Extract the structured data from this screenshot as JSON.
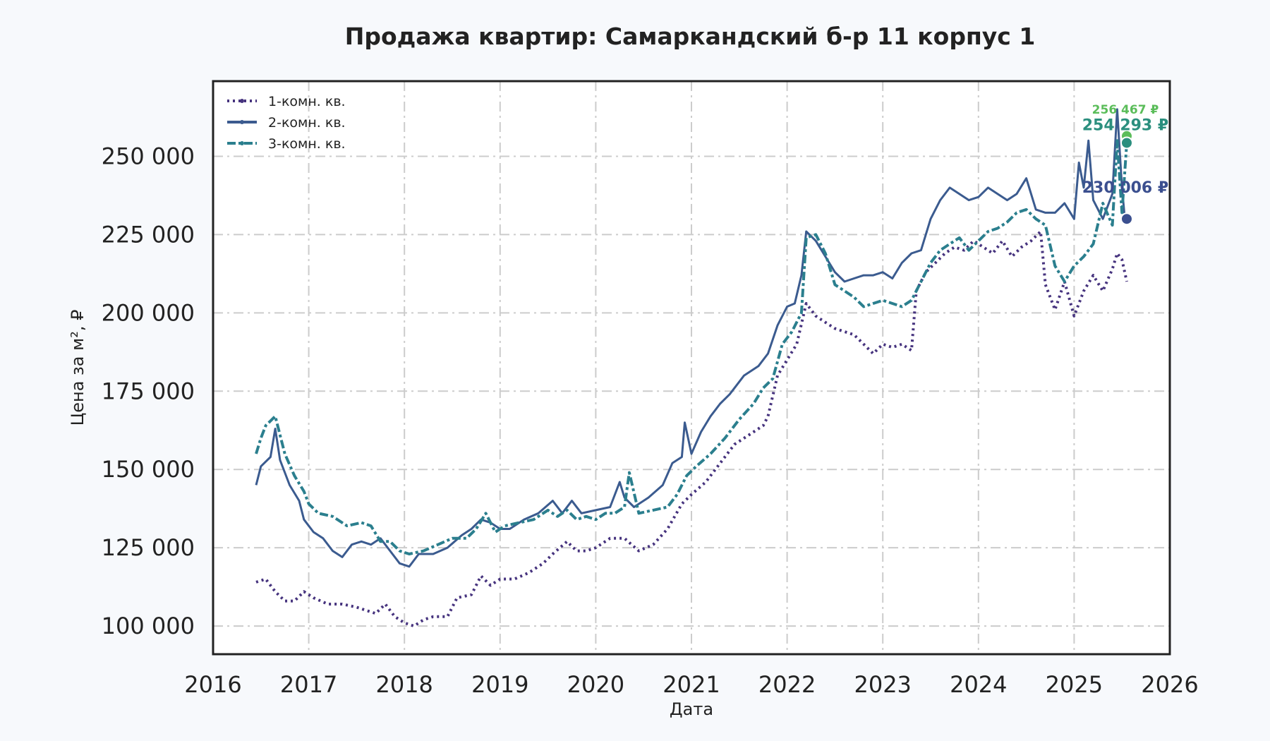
{
  "chart_data": {
    "type": "line",
    "title": "Продажа квартир: Самаркандский б-р 11 корпус 1",
    "xlabel": "Дата",
    "ylabel": "Цена за м², ₽",
    "xlim": [
      2016,
      2026
    ],
    "ylim": [
      91000,
      274000
    ],
    "x_ticks": [
      "2016",
      "2017",
      "2018",
      "2019",
      "2020",
      "2021",
      "2022",
      "2023",
      "2024",
      "2025",
      "2026"
    ],
    "y_ticks": [
      "100 000",
      "125 000",
      "150 000",
      "175 000",
      "200 000",
      "225 000",
      "250 000"
    ],
    "y_tick_values": [
      100000,
      125000,
      150000,
      175000,
      200000,
      225000,
      250000
    ],
    "grid": true,
    "legend_position": "top-left",
    "series": [
      {
        "name": "1-комн. кв.",
        "color": "#46337e",
        "style": "dotted",
        "x": [
          2016.45,
          2016.55,
          2016.65,
          2016.75,
          2016.85,
          2016.95,
          2017.05,
          2017.2,
          2017.35,
          2017.5,
          2017.6,
          2017.7,
          2017.8,
          2017.9,
          2018.0,
          2018.1,
          2018.2,
          2018.3,
          2018.45,
          2018.55,
          2018.7,
          2018.8,
          2018.9,
          2019.0,
          2019.15,
          2019.3,
          2019.45,
          2019.55,
          2019.7,
          2019.8,
          2019.9,
          2020.0,
          2020.15,
          2020.3,
          2020.45,
          2020.6,
          2020.75,
          2020.9,
          2021.0,
          2021.15,
          2021.3,
          2021.45,
          2021.6,
          2021.75,
          2021.8,
          2021.9,
          2022.0,
          2022.1,
          2022.2,
          2022.3,
          2022.4,
          2022.5,
          2022.6,
          2022.7,
          2022.8,
          2022.9,
          2023.0,
          2023.1,
          2023.2,
          2023.3,
          2023.35,
          2023.45,
          2023.55,
          2023.65,
          2023.75,
          2023.85,
          2023.95,
          2024.05,
          2024.15,
          2024.25,
          2024.35,
          2024.45,
          2024.55,
          2024.65,
          2024.7,
          2024.8,
          2024.9,
          2025.0,
          2025.1,
          2025.2,
          2025.3,
          2025.4,
          2025.45,
          2025.5,
          2025.55
        ],
        "values": [
          114000,
          115000,
          111000,
          108000,
          108000,
          111000,
          109000,
          107000,
          107000,
          106000,
          105000,
          104000,
          107000,
          103000,
          101000,
          100000,
          102000,
          103000,
          103000,
          109000,
          110000,
          116000,
          113000,
          115000,
          115000,
          117000,
          120000,
          123000,
          127000,
          124000,
          124000,
          125000,
          128000,
          128000,
          124000,
          126000,
          131000,
          139000,
          142000,
          146000,
          152000,
          158000,
          161000,
          164000,
          167000,
          180000,
          185000,
          190000,
          203000,
          199000,
          197000,
          195000,
          194000,
          193000,
          190000,
          187000,
          190000,
          189000,
          190000,
          188000,
          207000,
          213000,
          216000,
          219000,
          221000,
          220000,
          223000,
          221000,
          219000,
          223000,
          218000,
          221000,
          223000,
          226000,
          209000,
          201000,
          210000,
          199000,
          207000,
          212000,
          207000,
          214000,
          219000,
          217000,
          210000
        ]
      },
      {
        "name": "2-комн. кв.",
        "color": "#3b5b8f",
        "style": "solid",
        "x": [
          2016.45,
          2016.5,
          2016.6,
          2016.65,
          2016.7,
          2016.8,
          2016.9,
          2016.95,
          2017.05,
          2017.15,
          2017.25,
          2017.35,
          2017.45,
          2017.55,
          2017.65,
          2017.75,
          2017.85,
          2017.95,
          2018.05,
          2018.15,
          2018.3,
          2018.45,
          2018.6,
          2018.7,
          2018.8,
          2018.9,
          2019.0,
          2019.1,
          2019.25,
          2019.4,
          2019.55,
          2019.65,
          2019.75,
          2019.85,
          2020.0,
          2020.15,
          2020.25,
          2020.3,
          2020.4,
          2020.55,
          2020.7,
          2020.8,
          2020.9,
          2020.93,
          2021.0,
          2021.1,
          2021.2,
          2021.3,
          2021.4,
          2021.55,
          2021.7,
          2021.8,
          2021.9,
          2022.0,
          2022.08,
          2022.15,
          2022.2,
          2022.3,
          2022.4,
          2022.5,
          2022.6,
          2022.7,
          2022.8,
          2022.9,
          2023.0,
          2023.1,
          2023.2,
          2023.3,
          2023.4,
          2023.5,
          2023.6,
          2023.7,
          2023.8,
          2023.9,
          2024.0,
          2024.1,
          2024.2,
          2024.3,
          2024.4,
          2024.5,
          2024.6,
          2024.7,
          2024.8,
          2024.9,
          2025.0,
          2025.05,
          2025.1,
          2025.15,
          2025.2,
          2025.3,
          2025.4,
          2025.45,
          2025.5,
          2025.53
        ],
        "values": [
          145000,
          151000,
          154000,
          163000,
          153000,
          145000,
          140000,
          134000,
          130000,
          128000,
          124000,
          122000,
          126000,
          127000,
          126000,
          128000,
          124000,
          120000,
          119000,
          123000,
          123000,
          125000,
          129000,
          131000,
          134000,
          133000,
          131000,
          131000,
          134000,
          136000,
          140000,
          136000,
          140000,
          136000,
          137000,
          138000,
          146000,
          141000,
          138000,
          141000,
          145000,
          152000,
          154000,
          165000,
          155000,
          162000,
          167000,
          171000,
          174000,
          180000,
          183000,
          187000,
          196000,
          202000,
          203000,
          212000,
          226000,
          223000,
          218000,
          213000,
          210000,
          211000,
          212000,
          212000,
          213000,
          211000,
          216000,
          219000,
          220000,
          230000,
          236000,
          240000,
          238000,
          236000,
          237000,
          240000,
          238000,
          236000,
          238000,
          243000,
          233000,
          232000,
          232000,
          235000,
          230000,
          248000,
          240000,
          255000,
          236000,
          230000,
          238000,
          265000,
          240000,
          230006
        ]
      },
      {
        "name": "3-комн. кв.",
        "color": "#2b7f8e",
        "style": "dashdot",
        "x": [
          2016.45,
          2016.5,
          2016.55,
          2016.65,
          2016.75,
          2016.85,
          2016.95,
          2017.0,
          2017.1,
          2017.25,
          2017.4,
          2017.55,
          2017.65,
          2017.75,
          2017.85,
          2017.95,
          2018.05,
          2018.2,
          2018.35,
          2018.5,
          2018.65,
          2018.75,
          2018.85,
          2018.95,
          2019.05,
          2019.2,
          2019.35,
          2019.5,
          2019.6,
          2019.7,
          2019.8,
          2019.9,
          2020.0,
          2020.1,
          2020.2,
          2020.3,
          2020.35,
          2020.45,
          2020.6,
          2020.75,
          2020.85,
          2020.95,
          2021.05,
          2021.2,
          2021.35,
          2021.5,
          2021.65,
          2021.75,
          2021.85,
          2021.95,
          2022.05,
          2022.15,
          2022.2,
          2022.3,
          2022.4,
          2022.5,
          2022.6,
          2022.7,
          2022.8,
          2022.9,
          2023.0,
          2023.1,
          2023.2,
          2023.3,
          2023.4,
          2023.5,
          2023.6,
          2023.7,
          2023.8,
          2023.9,
          2024.0,
          2024.1,
          2024.2,
          2024.3,
          2024.4,
          2024.5,
          2024.6,
          2024.7,
          2024.8,
          2024.9,
          2025.0,
          2025.1,
          2025.2,
          2025.3,
          2025.4,
          2025.45,
          2025.5,
          2025.55
        ],
        "values": [
          155000,
          160000,
          164000,
          167000,
          155000,
          148000,
          143000,
          139000,
          136000,
          135000,
          132000,
          133000,
          132000,
          127000,
          127000,
          124000,
          123000,
          124000,
          126000,
          128000,
          128000,
          131000,
          136000,
          130000,
          132000,
          133000,
          134000,
          137000,
          135000,
          137000,
          134000,
          135000,
          134000,
          136000,
          136000,
          138000,
          149000,
          136000,
          137000,
          138000,
          142000,
          148000,
          151000,
          155000,
          160000,
          166000,
          171000,
          176000,
          179000,
          190000,
          194000,
          200000,
          224000,
          225000,
          219000,
          209000,
          207000,
          205000,
          202000,
          203000,
          204000,
          203000,
          202000,
          204000,
          210000,
          216000,
          220000,
          222000,
          224000,
          220000,
          223000,
          226000,
          227000,
          229000,
          232000,
          233000,
          230000,
          228000,
          215000,
          210000,
          215000,
          218000,
          222000,
          235000,
          228000,
          255000,
          232000,
          254293
        ]
      }
    ],
    "end_labels": [
      {
        "text": "256 467 ₽",
        "color": "#5bbd5a",
        "x": 2025.55,
        "y": 256467
      },
      {
        "text": "254 293 ₽",
        "color": "#2b8f7e",
        "x": 2025.55,
        "y": 254293
      },
      {
        "text": "230 006 ₽",
        "color": "#3b4f8f",
        "x": 2025.55,
        "y": 230006
      }
    ]
  }
}
